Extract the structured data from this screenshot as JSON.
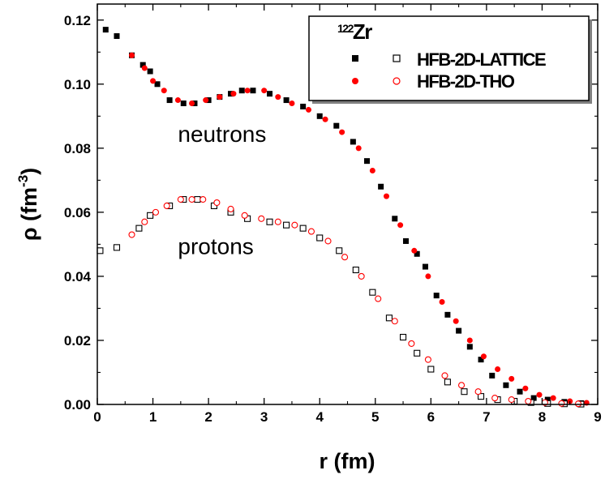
{
  "chart_data": {
    "type": "scatter",
    "xlabel": "r (fm)",
    "ylabel_main": "ρ (fm",
    "ylabel_sup": "-3",
    "ylabel_close": ")",
    "xlim": [
      0,
      9
    ],
    "ylim": [
      0,
      0.125
    ],
    "xticks": [
      "0",
      "1",
      "2",
      "3",
      "4",
      "5",
      "6",
      "7",
      "8",
      "9"
    ],
    "yticks": [
      "0.00",
      "0.02",
      "0.04",
      "0.06",
      "0.08",
      "0.10",
      "0.12"
    ],
    "legend": {
      "title_sup": "122",
      "title_main": "Zr",
      "placement": "top-right",
      "entries": [
        {
          "label": "HFB-2D-LATTICE",
          "filled_color": "#000000",
          "open_color": "#000000",
          "marker": "square"
        },
        {
          "label": "HFB-2D-THO",
          "filled_color": "#ff0000",
          "open_color": "#ff0000",
          "marker": "circle"
        }
      ]
    },
    "annotations": [
      {
        "text": "neutrons",
        "x": 1.45,
        "y": 0.082
      },
      {
        "text": "protons",
        "x": 1.45,
        "y": 0.047
      }
    ],
    "series": [
      {
        "name": "HFB-2D-LATTICE",
        "group": "neutrons",
        "marker": "square",
        "filled": true,
        "color": "#000000",
        "x": [
          0.15,
          0.35,
          0.62,
          0.82,
          0.95,
          1.08,
          1.3,
          1.55,
          1.75,
          2.0,
          2.2,
          2.4,
          2.6,
          2.8,
          3.1,
          3.4,
          3.7,
          4.0,
          4.3,
          4.6,
          4.85,
          5.1,
          5.35,
          5.55,
          5.75,
          5.9,
          6.1,
          6.3,
          6.5,
          6.7,
          6.9,
          7.1,
          7.35,
          7.6,
          7.85,
          8.1,
          8.4,
          8.7
        ],
        "y": [
          0.117,
          0.115,
          0.109,
          0.106,
          0.104,
          0.1,
          0.095,
          0.094,
          0.094,
          0.095,
          0.096,
          0.097,
          0.098,
          0.098,
          0.097,
          0.095,
          0.093,
          0.09,
          0.087,
          0.082,
          0.076,
          0.068,
          0.058,
          0.051,
          0.047,
          0.043,
          0.034,
          0.028,
          0.023,
          0.018,
          0.014,
          0.009,
          0.006,
          0.004,
          0.002,
          0.0015,
          0.0008,
          0.0004
        ]
      },
      {
        "name": "HFB-2D-THO",
        "group": "neutrons",
        "marker": "circle",
        "filled": true,
        "color": "#ff0000",
        "x": [
          0.62,
          0.85,
          1.0,
          1.2,
          1.45,
          1.7,
          1.95,
          2.2,
          2.45,
          2.7,
          3.0,
          3.25,
          3.5,
          3.8,
          4.1,
          4.4,
          4.7,
          4.95,
          5.2,
          5.45,
          5.7,
          5.95,
          6.2,
          6.45,
          6.7,
          6.95,
          7.2,
          7.45,
          7.7,
          7.95,
          8.2,
          8.5,
          8.8
        ],
        "y": [
          0.109,
          0.105,
          0.101,
          0.098,
          0.095,
          0.094,
          0.095,
          0.096,
          0.097,
          0.098,
          0.098,
          0.096,
          0.094,
          0.092,
          0.089,
          0.085,
          0.08,
          0.073,
          0.065,
          0.056,
          0.048,
          0.04,
          0.032,
          0.026,
          0.02,
          0.015,
          0.011,
          0.008,
          0.005,
          0.003,
          0.002,
          0.001,
          0.0005
        ]
      },
      {
        "name": "HFB-2D-LATTICE",
        "group": "protons",
        "marker": "square",
        "filled": false,
        "color": "#000000",
        "x": [
          0.05,
          0.35,
          0.75,
          0.95,
          1.3,
          1.55,
          1.8,
          2.1,
          2.4,
          2.7,
          3.1,
          3.4,
          3.7,
          4.0,
          4.35,
          4.65,
          4.95,
          5.25,
          5.5,
          5.75,
          6.0,
          6.3,
          6.6,
          6.9,
          7.2,
          7.5,
          7.8,
          8.1,
          8.4,
          8.7
        ],
        "y": [
          0.048,
          0.049,
          0.055,
          0.059,
          0.062,
          0.064,
          0.064,
          0.062,
          0.06,
          0.058,
          0.057,
          0.056,
          0.055,
          0.052,
          0.048,
          0.042,
          0.035,
          0.027,
          0.021,
          0.016,
          0.011,
          0.007,
          0.004,
          0.0025,
          0.0015,
          0.001,
          0.0006,
          0.0003,
          0.0002,
          0.0001
        ]
      },
      {
        "name": "HFB-2D-THO",
        "group": "protons",
        "marker": "circle",
        "filled": false,
        "color": "#ff0000",
        "x": [
          0.62,
          0.85,
          1.05,
          1.25,
          1.5,
          1.7,
          1.9,
          2.15,
          2.4,
          2.65,
          2.95,
          3.25,
          3.55,
          3.85,
          4.15,
          4.45,
          4.75,
          5.05,
          5.35,
          5.65,
          5.95,
          6.25,
          6.55,
          6.85,
          7.15,
          7.45,
          7.75,
          8.05,
          8.35,
          8.65
        ],
        "y": [
          0.053,
          0.057,
          0.06,
          0.062,
          0.064,
          0.064,
          0.064,
          0.063,
          0.061,
          0.059,
          0.058,
          0.057,
          0.056,
          0.054,
          0.051,
          0.046,
          0.04,
          0.033,
          0.026,
          0.019,
          0.014,
          0.009,
          0.006,
          0.004,
          0.002,
          0.0015,
          0.001,
          0.0006,
          0.0003,
          0.0002
        ]
      }
    ]
  }
}
